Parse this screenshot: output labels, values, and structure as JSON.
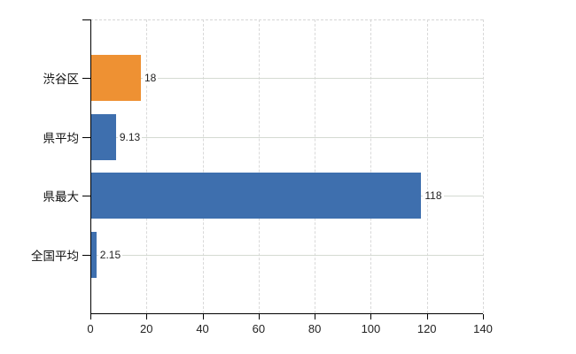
{
  "chart_data": {
    "type": "bar",
    "orientation": "horizontal",
    "title": "",
    "xlabel": "",
    "ylabel": "",
    "categories": [
      "渋谷区",
      "県平均",
      "県最大",
      "全国平均"
    ],
    "values": [
      18,
      9.13,
      118,
      2.15
    ],
    "value_labels": [
      "18",
      "9.13",
      "118",
      "2.15"
    ],
    "bar_colors": [
      "#ee9133",
      "#3e6fae",
      "#3e6fae",
      "#3e6fae"
    ],
    "xlim": [
      0,
      140
    ],
    "x_ticks": [
      0,
      20,
      40,
      60,
      80,
      100,
      120,
      140
    ],
    "x_tick_labels": [
      "0",
      "20",
      "40",
      "60",
      "80",
      "100",
      "120",
      "140"
    ],
    "legend": null,
    "grid": {
      "vertical": true,
      "vertical_style": "dashed",
      "horizontal_at_category_centers": true,
      "horizontal_style": "solid",
      "top_border": "dashed"
    },
    "colors": {
      "axis": "#000000",
      "vertical_grid": "#d9d9d9",
      "horizontal_grid": "#d4dad2",
      "text": "#222222",
      "background": "#ffffff"
    }
  }
}
